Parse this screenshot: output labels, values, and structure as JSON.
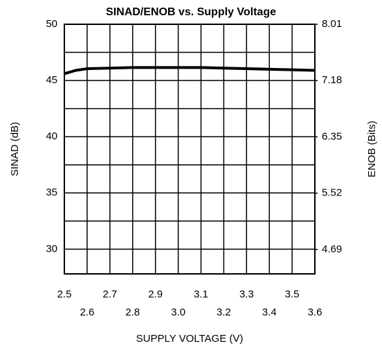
{
  "chart_data": {
    "type": "line",
    "title": "SINAD/ENOB vs. Supply Voltage",
    "xlabel": "SUPPLY VOLTAGE (V)",
    "ylabel": "SINAD (dB)",
    "y2label": "ENOB (Bits)",
    "x": [
      2.5,
      2.55,
      2.6,
      2.7,
      2.8,
      2.9,
      3.0,
      3.1,
      3.2,
      3.3,
      3.4,
      3.5,
      3.6
    ],
    "series": [
      {
        "name": "SINAD",
        "color": "#000000",
        "values": [
          45.6,
          45.9,
          46.05,
          46.1,
          46.15,
          46.15,
          46.15,
          46.15,
          46.1,
          46.05,
          46.0,
          45.95,
          45.9
        ]
      }
    ],
    "xlim": [
      2.5,
      3.6
    ],
    "xticks": [
      2.5,
      2.6,
      2.7,
      2.8,
      2.9,
      {
        "value": 3.0,
        "label": "3.0"
      },
      3.1,
      3.2,
      3.3,
      3.4,
      3.5,
      3.6
    ],
    "ylim": [
      27.8,
      50
    ],
    "yticks": [
      30,
      35,
      40,
      45,
      50
    ],
    "yminorticks": [
      32.5,
      37.5,
      42.5,
      47.5
    ],
    "y2lim": [
      4.33,
      8.01
    ],
    "y2ticks": [
      4.69,
      5.52,
      6.35,
      7.18,
      8.01
    ],
    "grid": true
  }
}
